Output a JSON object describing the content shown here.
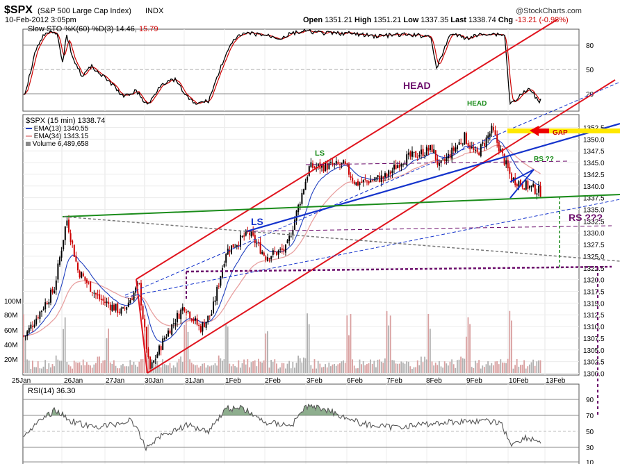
{
  "header": {
    "symbol": "$SPX",
    "name": "(S&P 500 Large Cap Index)",
    "exchange": "INDX",
    "datetime": "10-Feb-2012 3:05pm",
    "brand": "@StockCharts.com",
    "open_label": "Open",
    "open": "1351.21",
    "high_label": "High",
    "high": "1351.21",
    "low_label": "Low",
    "low": "1337.35",
    "last_label": "Last",
    "last": "1338.74",
    "chg_label": "Chg",
    "chg": "-13.21 (-0.98%)"
  },
  "sto": {
    "label": "Slow STO %K(60) %D(3) 14.46,",
    "d_value": "15.79",
    "ticks": [
      "80",
      "50",
      "20"
    ]
  },
  "price_legend": {
    "title": "$SPX (15 min) 1338.74",
    "ema13": "EMA(13) 1340.55",
    "ema34": "EMA(34) 1343.15",
    "volume": "Volume 6,489,658"
  },
  "rsi": {
    "label": "RSI(14) 36.30",
    "ticks": [
      "90",
      "70",
      "50",
      "30",
      "10"
    ]
  },
  "annotations": {
    "head_purple": "HEAD",
    "head_green": "HEAD",
    "ls_green": "LS",
    "ls_blue": "LS",
    "rs_green": "RS ??",
    "rs_purple": "RS ???",
    "gap": "GAP"
  },
  "colors": {
    "price_up": "#000000",
    "price_down": "#cc0000",
    "ema13": "#1f3fbf",
    "ema34": "#e8a0a0",
    "volume": "#d9a0a0",
    "channel": "#e0141e",
    "trend_blue": "#1433cc",
    "neckline": "#1a8c1a",
    "purple": "#6a0a6a",
    "yellow": "#ffe800",
    "rsi_fill": "#5e8c5e"
  },
  "chart_data": {
    "type": "candlestick",
    "interval": "15 min",
    "x_tick_labels": [
      "25Jan",
      "26Jan",
      "27Jan",
      "30Jan",
      "31Jan",
      "1Feb",
      "2Feb",
      "3Feb",
      "6Feb",
      "7Feb",
      "8Feb",
      "9Feb",
      "10Feb",
      "13Feb"
    ],
    "y_axis": {
      "min": 1300.0,
      "max": 1352.5,
      "ticks": [
        "1352.5",
        "1350.0",
        "1347.5",
        "1345.0",
        "1342.5",
        "1340.0",
        "1337.5",
        "1335.0",
        "1332.5",
        "1330.0",
        "1327.5",
        "1325.0",
        "1322.5",
        "1320.0",
        "1317.5",
        "1315.0",
        "1312.5",
        "1310.0",
        "1307.5",
        "1305.0",
        "1302.5",
        "1300.0"
      ]
    },
    "volume_ticks": [
      "100M",
      "80M",
      "60M",
      "40M",
      "20M"
    ],
    "close_path": [
      {
        "date": "25Jan",
        "close": 1308.0
      },
      {
        "date": "25Jan",
        "close": 1318.0
      },
      {
        "date": "26Jan",
        "close": 1333.0
      },
      {
        "date": "26Jan",
        "close": 1322.0
      },
      {
        "date": "27Jan",
        "close": 1316.0
      },
      {
        "date": "27Jan",
        "close": 1313.0
      },
      {
        "date": "27Jan",
        "close": 1319.0
      },
      {
        "date": "30Jan",
        "close": 1300.5
      },
      {
        "date": "30Jan",
        "close": 1308.0
      },
      {
        "date": "31Jan",
        "close": 1314.5
      },
      {
        "date": "31Jan",
        "close": 1309.5
      },
      {
        "date": "1Feb",
        "close": 1313.0
      },
      {
        "date": "1Feb",
        "close": 1326.0
      },
      {
        "date": "2Feb",
        "close": 1330.0
      },
      {
        "date": "2Feb",
        "close": 1325.0
      },
      {
        "date": "3Feb",
        "close": 1326.5
      },
      {
        "date": "3Feb",
        "close": 1344.0
      },
      {
        "date": "6Feb",
        "close": 1344.5
      },
      {
        "date": "6Feb",
        "close": 1340.5
      },
      {
        "date": "7Feb",
        "close": 1342.0
      },
      {
        "date": "7Feb",
        "close": 1345.5
      },
      {
        "date": "8Feb",
        "close": 1348.0
      },
      {
        "date": "8Feb",
        "close": 1344.0
      },
      {
        "date": "9Feb",
        "close": 1350.5
      },
      {
        "date": "9Feb",
        "close": 1346.5
      },
      {
        "date": "9Feb",
        "close": 1352.0
      },
      {
        "date": "10Feb",
        "close": 1341.5
      },
      {
        "date": "10Feb",
        "close": 1338.74
      }
    ]
  }
}
